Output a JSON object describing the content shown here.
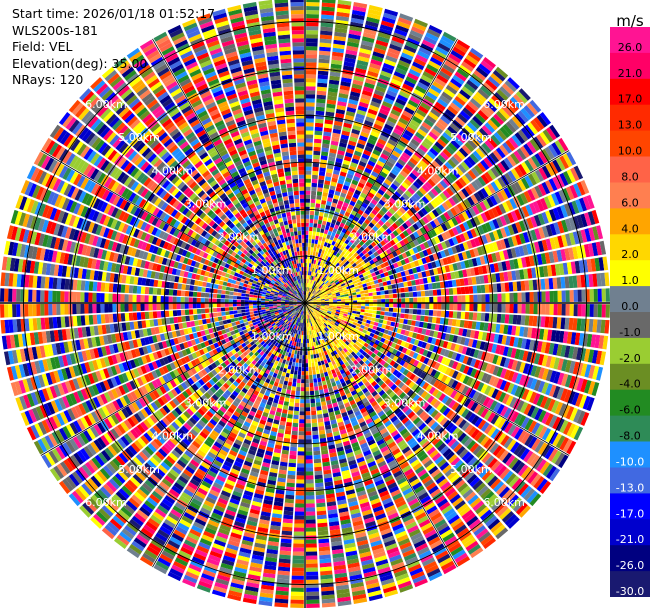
{
  "header": {
    "start_time": "Start time: 2026/01/18 01:52:17",
    "instrument": "WLS200s-181",
    "field": "Field: VEL",
    "elevation": "Elevation(deg): 35.00",
    "nrays": "NRays: 120"
  },
  "chart_data": {
    "type": "heatmap",
    "projection": "polar (PPI scan)",
    "field": "VEL",
    "n_rays": 120,
    "elevation_deg": 35.0,
    "range_rings_km": [
      1.0,
      2.0,
      3.0,
      4.0,
      5.0,
      6.0
    ],
    "range_ring_labels": [
      "1.00km",
      "2.00km",
      "3.00km",
      "4.00km",
      "5.00km",
      "6.00km"
    ],
    "colorbar": {
      "unit": "m/s",
      "tick_labels": [
        "26.0",
        "21.0",
        "17.0",
        "13.0",
        "10.0",
        "8.0",
        "6.0",
        "4.0",
        "2.0",
        "1.0",
        "0.0",
        "-1.0",
        "-2.0",
        "-4.0",
        "-6.0",
        "-8.0",
        "-10.0",
        "-13.0",
        "-17.0",
        "-21.0",
        "-26.0",
        "-30.0"
      ],
      "colors": [
        "#ff1493",
        "#ff0066",
        "#ff0000",
        "#ff2a00",
        "#ff4500",
        "#ff6347",
        "#ff7f50",
        "#ffa500",
        "#ffd700",
        "#ffff00",
        "#708090",
        "#696969",
        "#9acd32",
        "#6b8e23",
        "#228b22",
        "#2e8b57",
        "#1e90ff",
        "#4169e1",
        "#0000ff",
        "#0000cd",
        "#000080",
        "#191970"
      ],
      "range": [
        -30.0,
        30.0
      ]
    },
    "near_range_notes": "positive (yellow/orange) velocities dominate east of center, mixed noise elsewhere"
  }
}
